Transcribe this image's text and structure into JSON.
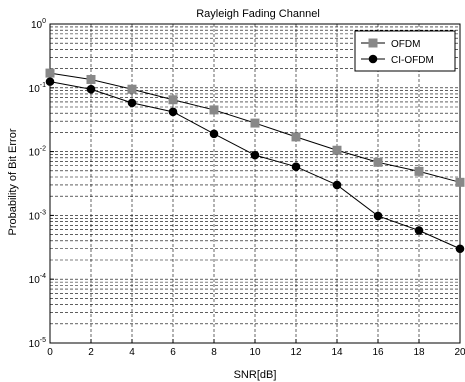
{
  "chart_data": {
    "type": "line",
    "title": "Rayleigh Fading Channel",
    "xlabel": "SNR[dB]",
    "ylabel": "Probability of Bit Error",
    "xlim": [
      0,
      20
    ],
    "ylim": [
      1e-05,
      1
    ],
    "yscale": "log",
    "grid": true,
    "legend_position": "top-right",
    "x": [
      0,
      2,
      4,
      6,
      8,
      10,
      12,
      14,
      16,
      18,
      20
    ],
    "x_ticks": [
      "0",
      "2",
      "4",
      "6",
      "8",
      "10",
      "12",
      "14",
      "16",
      "18",
      "20"
    ],
    "y_ticks": [
      {
        "base": "10",
        "exp": "0"
      },
      {
        "base": "10",
        "exp": "-1"
      },
      {
        "base": "10",
        "exp": "-2"
      },
      {
        "base": "10",
        "exp": "-3"
      },
      {
        "base": "10",
        "exp": "-4"
      },
      {
        "base": "10",
        "exp": "-5"
      }
    ],
    "series": [
      {
        "name": "OFDM",
        "marker": "square",
        "color": "#888888",
        "values": [
          0.17,
          0.135,
          0.095,
          0.065,
          0.045,
          0.028,
          0.017,
          0.0105,
          0.0068,
          0.0049,
          0.0033
        ]
      },
      {
        "name": "CI-OFDM",
        "marker": "circle",
        "color": "#000000",
        "values": [
          0.125,
          0.095,
          0.058,
          0.042,
          0.019,
          0.0088,
          0.0058,
          0.003,
          0.00098,
          0.00058,
          0.0003
        ]
      }
    ]
  }
}
